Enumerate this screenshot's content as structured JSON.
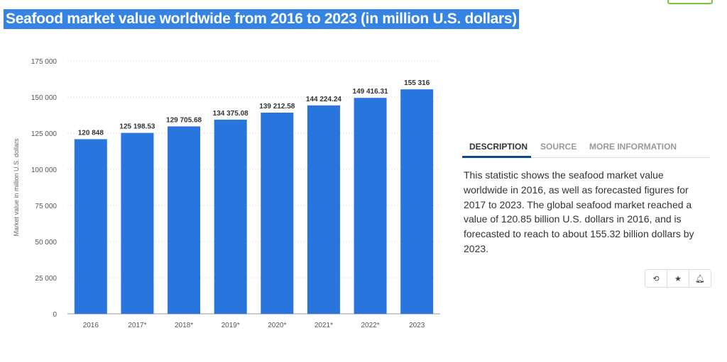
{
  "title": "Seafood market value worldwide from 2016 to 2023 (in million U.S. dollars)",
  "tabs": [
    "DESCRIPTION",
    "SOURCE",
    "MORE INFORMATION"
  ],
  "description": "This statistic shows the seafood market value worldwide in 2016, as well as forecasted figures for 2017 to 2023. The global seafood market reached a value of 120.85 billion U.S. dollars in 2016, and is forecasted to reach to about 155.32 billion dollars by 2023.",
  "actions": [
    "history-icon",
    "star-icon",
    "bell-icon"
  ],
  "chart_data": {
    "type": "bar",
    "title": "Seafood market value worldwide from 2016 to 2023 (in million U.S. dollars)",
    "categories": [
      "2016",
      "2017*",
      "2018*",
      "2019*",
      "2020*",
      "2021*",
      "2022*",
      "2023"
    ],
    "values": [
      120848,
      125198.53,
      129705.68,
      134375.08,
      139212.58,
      144224.24,
      149416.31,
      155316
    ],
    "labels": [
      "120 848",
      "125 198.53",
      "129 705.68",
      "134 375.08",
      "139 212.58",
      "144 224.24",
      "149 416.31",
      "155 316"
    ],
    "yticks": [
      "0",
      "25 000",
      "50 000",
      "75 000",
      "100 000",
      "125 000",
      "150 000",
      "175 000"
    ],
    "ylim": [
      0,
      175000
    ],
    "xlabel": "",
    "ylabel": "Market value in million U.S. dollars",
    "grid": true,
    "color": "#2876dd"
  }
}
